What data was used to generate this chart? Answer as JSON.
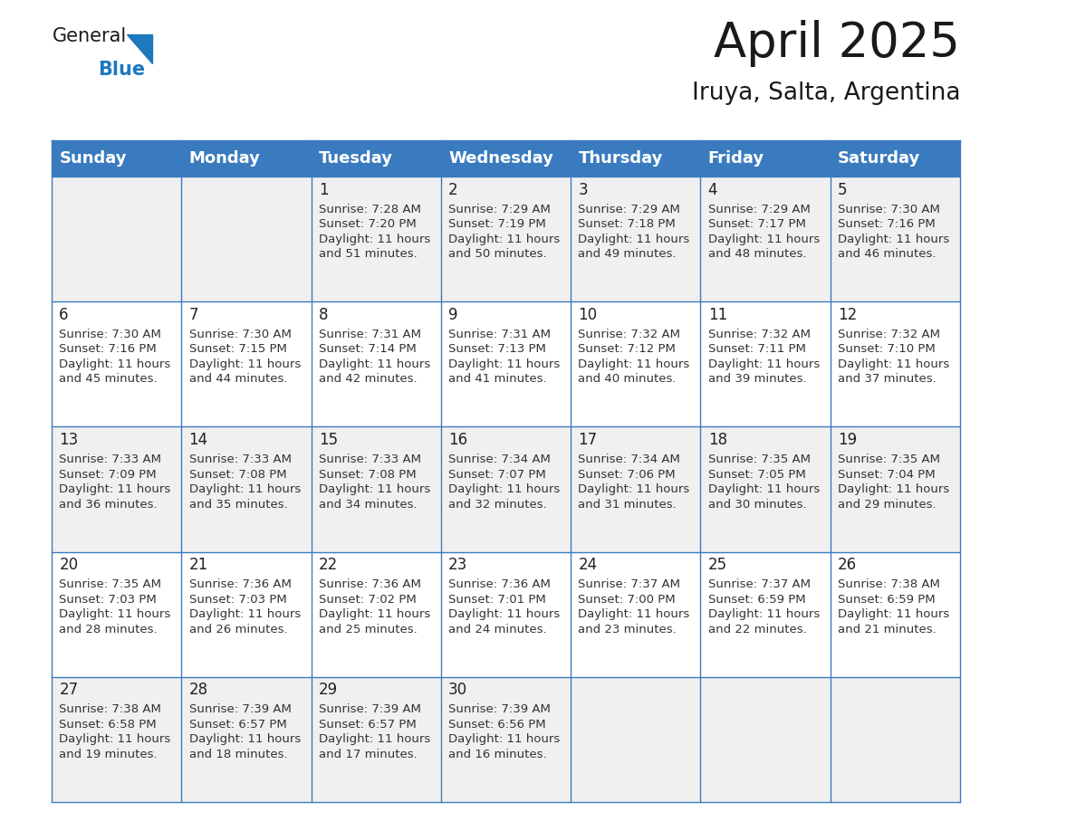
{
  "title": "April 2025",
  "subtitle": "Iruya, Salta, Argentina",
  "header_bg": "#3a7bbf",
  "header_text": "#ffffff",
  "cell_bg_odd": "#f0f0f0",
  "cell_bg_even": "#ffffff",
  "grid_line_color": "#3a7bbf",
  "text_color": "#333333",
  "day_num_color": "#222222",
  "day_headers": [
    "Sunday",
    "Monday",
    "Tuesday",
    "Wednesday",
    "Thursday",
    "Friday",
    "Saturday"
  ],
  "days_data": [
    {
      "day": 1,
      "col": 2,
      "row": 0,
      "sunrise": "7:28 AM",
      "sunset": "7:20 PM",
      "dl1": "11 hours",
      "dl2": "and 51 minutes."
    },
    {
      "day": 2,
      "col": 3,
      "row": 0,
      "sunrise": "7:29 AM",
      "sunset": "7:19 PM",
      "dl1": "11 hours",
      "dl2": "and 50 minutes."
    },
    {
      "day": 3,
      "col": 4,
      "row": 0,
      "sunrise": "7:29 AM",
      "sunset": "7:18 PM",
      "dl1": "11 hours",
      "dl2": "and 49 minutes."
    },
    {
      "day": 4,
      "col": 5,
      "row": 0,
      "sunrise": "7:29 AM",
      "sunset": "7:17 PM",
      "dl1": "11 hours",
      "dl2": "and 48 minutes."
    },
    {
      "day": 5,
      "col": 6,
      "row": 0,
      "sunrise": "7:30 AM",
      "sunset": "7:16 PM",
      "dl1": "11 hours",
      "dl2": "and 46 minutes."
    },
    {
      "day": 6,
      "col": 0,
      "row": 1,
      "sunrise": "7:30 AM",
      "sunset": "7:16 PM",
      "dl1": "11 hours",
      "dl2": "and 45 minutes."
    },
    {
      "day": 7,
      "col": 1,
      "row": 1,
      "sunrise": "7:30 AM",
      "sunset": "7:15 PM",
      "dl1": "11 hours",
      "dl2": "and 44 minutes."
    },
    {
      "day": 8,
      "col": 2,
      "row": 1,
      "sunrise": "7:31 AM",
      "sunset": "7:14 PM",
      "dl1": "11 hours",
      "dl2": "and 42 minutes."
    },
    {
      "day": 9,
      "col": 3,
      "row": 1,
      "sunrise": "7:31 AM",
      "sunset": "7:13 PM",
      "dl1": "11 hours",
      "dl2": "and 41 minutes."
    },
    {
      "day": 10,
      "col": 4,
      "row": 1,
      "sunrise": "7:32 AM",
      "sunset": "7:12 PM",
      "dl1": "11 hours",
      "dl2": "and 40 minutes."
    },
    {
      "day": 11,
      "col": 5,
      "row": 1,
      "sunrise": "7:32 AM",
      "sunset": "7:11 PM",
      "dl1": "11 hours",
      "dl2": "and 39 minutes."
    },
    {
      "day": 12,
      "col": 6,
      "row": 1,
      "sunrise": "7:32 AM",
      "sunset": "7:10 PM",
      "dl1": "11 hours",
      "dl2": "and 37 minutes."
    },
    {
      "day": 13,
      "col": 0,
      "row": 2,
      "sunrise": "7:33 AM",
      "sunset": "7:09 PM",
      "dl1": "11 hours",
      "dl2": "and 36 minutes."
    },
    {
      "day": 14,
      "col": 1,
      "row": 2,
      "sunrise": "7:33 AM",
      "sunset": "7:08 PM",
      "dl1": "11 hours",
      "dl2": "and 35 minutes."
    },
    {
      "day": 15,
      "col": 2,
      "row": 2,
      "sunrise": "7:33 AM",
      "sunset": "7:08 PM",
      "dl1": "11 hours",
      "dl2": "and 34 minutes."
    },
    {
      "day": 16,
      "col": 3,
      "row": 2,
      "sunrise": "7:34 AM",
      "sunset": "7:07 PM",
      "dl1": "11 hours",
      "dl2": "and 32 minutes."
    },
    {
      "day": 17,
      "col": 4,
      "row": 2,
      "sunrise": "7:34 AM",
      "sunset": "7:06 PM",
      "dl1": "11 hours",
      "dl2": "and 31 minutes."
    },
    {
      "day": 18,
      "col": 5,
      "row": 2,
      "sunrise": "7:35 AM",
      "sunset": "7:05 PM",
      "dl1": "11 hours",
      "dl2": "and 30 minutes."
    },
    {
      "day": 19,
      "col": 6,
      "row": 2,
      "sunrise": "7:35 AM",
      "sunset": "7:04 PM",
      "dl1": "11 hours",
      "dl2": "and 29 minutes."
    },
    {
      "day": 20,
      "col": 0,
      "row": 3,
      "sunrise": "7:35 AM",
      "sunset": "7:03 PM",
      "dl1": "11 hours",
      "dl2": "and 28 minutes."
    },
    {
      "day": 21,
      "col": 1,
      "row": 3,
      "sunrise": "7:36 AM",
      "sunset": "7:03 PM",
      "dl1": "11 hours",
      "dl2": "and 26 minutes."
    },
    {
      "day": 22,
      "col": 2,
      "row": 3,
      "sunrise": "7:36 AM",
      "sunset": "7:02 PM",
      "dl1": "11 hours",
      "dl2": "and 25 minutes."
    },
    {
      "day": 23,
      "col": 3,
      "row": 3,
      "sunrise": "7:36 AM",
      "sunset": "7:01 PM",
      "dl1": "11 hours",
      "dl2": "and 24 minutes."
    },
    {
      "day": 24,
      "col": 4,
      "row": 3,
      "sunrise": "7:37 AM",
      "sunset": "7:00 PM",
      "dl1": "11 hours",
      "dl2": "and 23 minutes."
    },
    {
      "day": 25,
      "col": 5,
      "row": 3,
      "sunrise": "7:37 AM",
      "sunset": "6:59 PM",
      "dl1": "11 hours",
      "dl2": "and 22 minutes."
    },
    {
      "day": 26,
      "col": 6,
      "row": 3,
      "sunrise": "7:38 AM",
      "sunset": "6:59 PM",
      "dl1": "11 hours",
      "dl2": "and 21 minutes."
    },
    {
      "day": 27,
      "col": 0,
      "row": 4,
      "sunrise": "7:38 AM",
      "sunset": "6:58 PM",
      "dl1": "11 hours",
      "dl2": "and 19 minutes."
    },
    {
      "day": 28,
      "col": 1,
      "row": 4,
      "sunrise": "7:39 AM",
      "sunset": "6:57 PM",
      "dl1": "11 hours",
      "dl2": "and 18 minutes."
    },
    {
      "day": 29,
      "col": 2,
      "row": 4,
      "sunrise": "7:39 AM",
      "sunset": "6:57 PM",
      "dl1": "11 hours",
      "dl2": "and 17 minutes."
    },
    {
      "day": 30,
      "col": 3,
      "row": 4,
      "sunrise": "7:39 AM",
      "sunset": "6:56 PM",
      "dl1": "11 hours",
      "dl2": "and 16 minutes."
    }
  ],
  "num_rows": 5,
  "num_cols": 7,
  "title_fontsize": 38,
  "subtitle_fontsize": 19,
  "header_fontsize": 13,
  "day_num_fontsize": 12,
  "cell_text_fontsize": 9.5
}
